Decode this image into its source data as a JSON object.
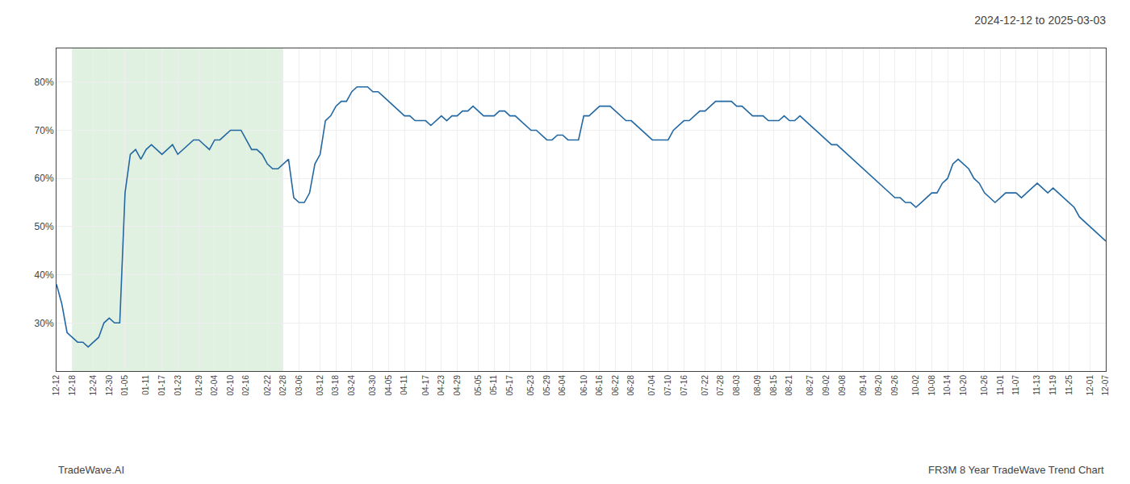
{
  "chart_data": {
    "type": "line",
    "title": "2024-12-12 to 2025-03-03",
    "annotations": [
      "TradeWave.AI",
      "FR3M 8 Year TradeWave Trend Chart"
    ],
    "categories": [
      "12-12",
      null,
      null,
      "12-18",
      null,
      null,
      null,
      "12-24",
      null,
      null,
      "12-30",
      null,
      null,
      "01-05",
      null,
      null,
      null,
      "01-11",
      null,
      null,
      "01-17",
      null,
      null,
      "01-23",
      null,
      null,
      null,
      "01-29",
      null,
      null,
      "02-04",
      null,
      null,
      "02-10",
      null,
      null,
      "02-16",
      null,
      null,
      null,
      "02-22",
      null,
      null,
      "02-28",
      null,
      null,
      "03-06",
      null,
      null,
      null,
      "03-12",
      null,
      null,
      "03-18",
      null,
      null,
      "03-24",
      null,
      null,
      null,
      "03-30",
      null,
      null,
      "04-05",
      null,
      null,
      "04-11",
      null,
      null,
      null,
      "04-17",
      null,
      null,
      "04-23",
      null,
      null,
      "04-29",
      null,
      null,
      null,
      "05-05",
      null,
      null,
      "05-11",
      null,
      null,
      "05-17",
      null,
      null,
      null,
      "05-23",
      null,
      null,
      "05-29",
      null,
      null,
      "06-04",
      null,
      null,
      null,
      "06-10",
      null,
      null,
      "06-16",
      null,
      null,
      "06-22",
      null,
      null,
      "06-28",
      null,
      null,
      null,
      "07-04",
      null,
      null,
      "07-10",
      null,
      null,
      "07-16",
      null,
      null,
      null,
      "07-22",
      null,
      null,
      "07-28",
      null,
      null,
      "08-03",
      null,
      null,
      null,
      "08-09",
      null,
      null,
      "08-15",
      null,
      null,
      "08-21",
      null,
      null,
      null,
      "08-27",
      null,
      null,
      "09-02",
      null,
      null,
      "09-08",
      null,
      null,
      null,
      "09-14",
      null,
      null,
      "09-20",
      null,
      null,
      "09-26",
      null,
      null,
      null,
      "10-02",
      null,
      null,
      "10-08",
      null,
      null,
      "10-14",
      null,
      null,
      "10-20",
      null,
      null,
      null,
      "10-26",
      null,
      null,
      "11-01",
      null,
      null,
      "11-07",
      null,
      null,
      null,
      "11-13",
      null,
      null,
      "11-19",
      null,
      null,
      "11-25",
      null,
      null,
      null,
      "12-01",
      null,
      null,
      "12-07"
    ],
    "values": [
      38,
      34,
      28,
      27,
      26,
      26,
      25,
      26,
      27,
      30,
      31,
      30,
      30,
      57,
      65,
      66,
      64,
      66,
      67,
      66,
      65,
      66,
      67,
      65,
      66,
      67,
      68,
      68,
      67,
      66,
      68,
      68,
      69,
      70,
      70,
      70,
      68,
      66,
      66,
      65,
      63,
      62,
      62,
      63,
      64,
      56,
      55,
      55,
      57,
      63,
      65,
      72,
      73,
      75,
      76,
      76,
      78,
      79,
      79,
      79,
      78,
      78,
      77,
      76,
      75,
      74,
      73,
      73,
      72,
      72,
      72,
      71,
      72,
      73,
      72,
      73,
      73,
      74,
      74,
      75,
      74,
      73,
      73,
      73,
      74,
      74,
      73,
      73,
      72,
      71,
      70,
      70,
      69,
      68,
      68,
      69,
      69,
      68,
      68,
      68,
      73,
      73,
      74,
      75,
      75,
      75,
      74,
      73,
      72,
      72,
      71,
      70,
      69,
      68,
      68,
      68,
      68,
      70,
      71,
      72,
      72,
      73,
      74,
      74,
      75,
      76,
      76,
      76,
      76,
      75,
      75,
      74,
      73,
      73,
      73,
      72,
      72,
      72,
      73,
      72,
      72,
      73,
      72,
      71,
      70,
      69,
      68,
      67,
      67,
      66,
      65,
      64,
      63,
      62,
      61,
      60,
      59,
      58,
      57,
      56,
      56,
      55,
      55,
      54,
      55,
      56,
      57,
      57,
      59,
      60,
      63,
      64,
      63,
      62,
      60,
      59,
      57,
      56,
      55,
      56,
      57,
      57,
      57,
      56,
      57,
      58,
      59,
      58,
      57,
      58,
      57,
      56,
      55,
      54,
      52,
      51,
      50,
      49,
      48,
      47
    ],
    "color": "#2368a2",
    "ylim": [
      20,
      87
    ],
    "yticks": [
      {
        "value": 30,
        "label": "30%"
      },
      {
        "value": 40,
        "label": "40%"
      },
      {
        "value": 50,
        "label": "50%"
      },
      {
        "value": 60,
        "label": "60%"
      },
      {
        "value": 70,
        "label": "70%"
      },
      {
        "value": 80,
        "label": "80%"
      }
    ],
    "grid": true,
    "highlight": {
      "from": "12-18",
      "to": "02-28",
      "color": "#c8e6c8"
    }
  }
}
